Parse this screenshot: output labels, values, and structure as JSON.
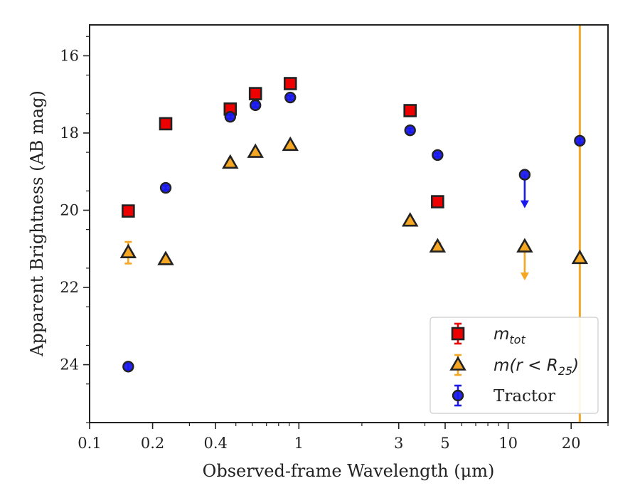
{
  "chart_data": {
    "type": "scatter",
    "title": "",
    "xlabel": "Observed-frame Wavelength (μm)",
    "ylabel": "Apparent Brightness (AB mag)",
    "x_scale": "log",
    "xlim": [
      0.1,
      30
    ],
    "ylim": [
      25.5,
      15.2
    ],
    "y_inverted": true,
    "grid": false,
    "legend_position": "lower-right",
    "x_ticks": [
      {
        "value": 0.1,
        "label": "0.1"
      },
      {
        "value": 0.2,
        "label": "0.2"
      },
      {
        "value": 0.4,
        "label": "0.4"
      },
      {
        "value": 1,
        "label": "1"
      },
      {
        "value": 3,
        "label": "3"
      },
      {
        "value": 5,
        "label": "5"
      },
      {
        "value": 10,
        "label": "10"
      },
      {
        "value": 20,
        "label": "20"
      }
    ],
    "x_minor_ticks": [
      0.3,
      0.5,
      0.6,
      0.7,
      0.8,
      0.9,
      2,
      4,
      6,
      7,
      8,
      9,
      30
    ],
    "y_ticks": [
      {
        "value": 16,
        "label": "16"
      },
      {
        "value": 18,
        "label": "18"
      },
      {
        "value": 20,
        "label": "20"
      },
      {
        "value": 22,
        "label": "22"
      },
      {
        "value": 24,
        "label": "24"
      }
    ],
    "series": [
      {
        "name": "m_tot",
        "legend_main": "m",
        "legend_sub": "tot",
        "marker": "square",
        "color": "#ee0000",
        "edge_color": "#222222",
        "points": [
          {
            "x": 0.153,
            "y": 20.02,
            "err": 0.1
          },
          {
            "x": 0.231,
            "y": 17.76,
            "err": 0.07
          },
          {
            "x": 0.47,
            "y": 17.38,
            "err": 0.07
          },
          {
            "x": 0.62,
            "y": 16.98,
            "err": 0.07
          },
          {
            "x": 0.91,
            "y": 16.72,
            "err": 0.07
          },
          {
            "x": 3.4,
            "y": 17.42,
            "err": 0.07
          },
          {
            "x": 4.6,
            "y": 19.78,
            "err": 0.1
          }
        ]
      },
      {
        "name": "m(r<R25)",
        "legend_main": "m(r < R",
        "legend_sub": "25",
        "legend_close": ")",
        "marker": "triangle",
        "color": "#f5a623",
        "edge_color": "#222222",
        "points": [
          {
            "x": 0.153,
            "y": 21.1,
            "err": 0.28
          },
          {
            "x": 0.231,
            "y": 21.28,
            "err": 0.06
          },
          {
            "x": 0.47,
            "y": 18.78,
            "err": 0.05
          },
          {
            "x": 0.62,
            "y": 18.5,
            "err": 0.05
          },
          {
            "x": 0.91,
            "y": 18.32,
            "err": 0.05
          },
          {
            "x": 3.4,
            "y": 20.28,
            "err": 0.05
          },
          {
            "x": 4.6,
            "y": 20.95,
            "err": 0.1
          },
          {
            "x": 12,
            "y": 20.95,
            "upper_limit": true
          },
          {
            "x": 22,
            "y": 21.25,
            "vline": true
          }
        ]
      },
      {
        "name": "Tractor",
        "legend_main": "Tractor",
        "marker": "circle",
        "color": "#1a1aee",
        "edge_color": "#222222",
        "points": [
          {
            "x": 0.153,
            "y": 24.05,
            "err": 0.08
          },
          {
            "x": 0.231,
            "y": 19.42,
            "err": 0.06
          },
          {
            "x": 0.47,
            "y": 17.58,
            "err": 0.05
          },
          {
            "x": 0.62,
            "y": 17.28,
            "err": 0.05
          },
          {
            "x": 0.91,
            "y": 17.08,
            "err": 0.05
          },
          {
            "x": 3.4,
            "y": 17.93,
            "err": 0.05
          },
          {
            "x": 4.6,
            "y": 18.57,
            "err": 0.05
          },
          {
            "x": 12,
            "y": 19.08,
            "upper_limit": true
          },
          {
            "x": 22,
            "y": 18.2,
            "err": 0.05
          }
        ]
      }
    ]
  }
}
